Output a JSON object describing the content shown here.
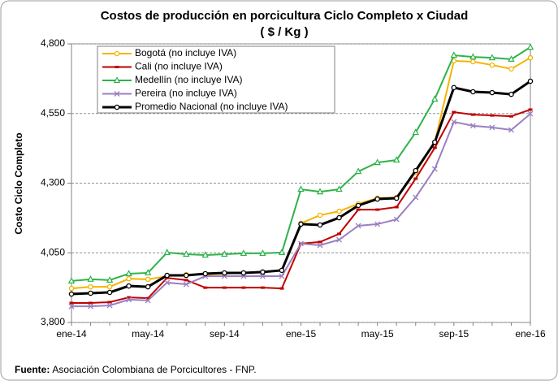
{
  "chart_data": {
    "type": "line",
    "title": "Costos de producción  en porcicultura Ciclo Completo x Ciudad",
    "subtitle": "( $ / Kg )",
    "y_label": "Costo Ciclo Completo",
    "source_label": "Fuente:",
    "source": "Asociación Colombiana de Porcicultores - FNP.",
    "categories": [
      "ene-14",
      null,
      null,
      null,
      "may-14",
      null,
      null,
      null,
      "sep-14",
      null,
      null,
      null,
      "ene-15",
      null,
      null,
      null,
      "may-15",
      null,
      null,
      null,
      "sep-15",
      null,
      null,
      null,
      "ene-16"
    ],
    "ylim": [
      3800,
      4800
    ],
    "yticks": [
      {
        "value": 3800,
        "label": "3,800"
      },
      {
        "value": 4050,
        "label": "4,050"
      },
      {
        "value": 4300,
        "label": "4,300"
      },
      {
        "value": 4550,
        "label": "4,550"
      },
      {
        "value": 4800,
        "label": "4,800"
      }
    ],
    "grid": true,
    "legend": "top-left",
    "series": [
      {
        "name": "Bogotá (no incluye IVA)",
        "color": "#f5b400",
        "marker": "circle",
        "values": [
          3922,
          3928,
          3928,
          3957,
          3955,
          3966,
          3972,
          3972,
          3975,
          3978,
          3981,
          3987,
          4156,
          4185,
          4199,
          4226,
          4246,
          4249,
          4339,
          4447,
          4739,
          4736,
          4724,
          4710,
          4750
        ]
      },
      {
        "name": "Cali (no incluye IVA)",
        "color": "#c00000",
        "marker": "square",
        "values": [
          3870,
          3870,
          3873,
          3890,
          3887,
          3960,
          3952,
          3925,
          3925,
          3925,
          3925,
          3922,
          4083,
          4089,
          4118,
          4205,
          4205,
          4214,
          4316,
          4427,
          4555,
          4546,
          4543,
          4540,
          4564
        ]
      },
      {
        "name": "Medellín (no incluye IVA)",
        "color": "#2db34a",
        "marker": "triangle",
        "values": [
          3949,
          3955,
          3952,
          3975,
          3978,
          4051,
          4045,
          4042,
          4045,
          4048,
          4048,
          4051,
          4278,
          4269,
          4278,
          4342,
          4374,
          4383,
          4482,
          4602,
          4759,
          4753,
          4750,
          4745,
          4788
        ]
      },
      {
        "name": "Pereira (no incluye IVA)",
        "color": "#9b7fc0",
        "marker": "cross",
        "values": [
          3858,
          3858,
          3861,
          3882,
          3879,
          3943,
          3937,
          3966,
          3966,
          3966,
          3966,
          3966,
          4083,
          4077,
          4097,
          4147,
          4153,
          4170,
          4249,
          4351,
          4520,
          4506,
          4500,
          4491,
          4549
        ]
      },
      {
        "name": "Promedio Nacional (no incluye IVA)",
        "color": "#000000",
        "marker": "circle",
        "width": 3,
        "values": [
          3902,
          3905,
          3908,
          3931,
          3928,
          3969,
          3969,
          3975,
          3978,
          3978,
          3981,
          3987,
          4153,
          4150,
          4176,
          4220,
          4243,
          4246,
          4345,
          4447,
          4643,
          4628,
          4625,
          4619,
          4666
        ]
      }
    ]
  }
}
